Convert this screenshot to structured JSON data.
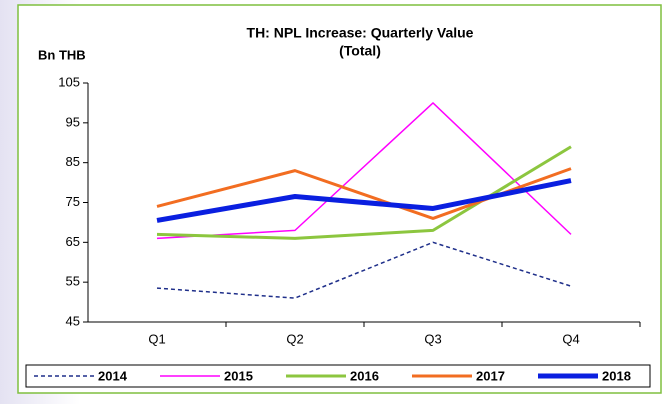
{
  "chart_data": {
    "type": "line",
    "title": "TH: NPL Increase: Quarterly Value",
    "subtitle": "(Total)",
    "y_label": "Bn THB",
    "categories": [
      "Q1",
      "Q2",
      "Q3",
      "Q4"
    ],
    "ylim": [
      45,
      105
    ],
    "yticks": [
      45,
      55,
      65,
      75,
      85,
      95,
      105
    ],
    "grid": false,
    "legend": "bottom",
    "series": [
      {
        "name": "2014",
        "color": "#1f2f8a",
        "width": 1.5,
        "dashed": true,
        "values": [
          53.5,
          51,
          65,
          54
        ]
      },
      {
        "name": "2015",
        "color": "#ff00ff",
        "width": 1.5,
        "dashed": false,
        "values": [
          66,
          68,
          100,
          67
        ]
      },
      {
        "name": "2016",
        "color": "#8cc63f",
        "width": 3,
        "dashed": false,
        "values": [
          67,
          66,
          68,
          89
        ]
      },
      {
        "name": "2017",
        "color": "#f26d21",
        "width": 3,
        "dashed": false,
        "values": [
          74,
          83,
          71,
          83.5
        ]
      },
      {
        "name": "2018",
        "color": "#0a1fe0",
        "width": 5,
        "dashed": false,
        "values": [
          70.5,
          76.5,
          73.5,
          80.5
        ]
      }
    ]
  }
}
